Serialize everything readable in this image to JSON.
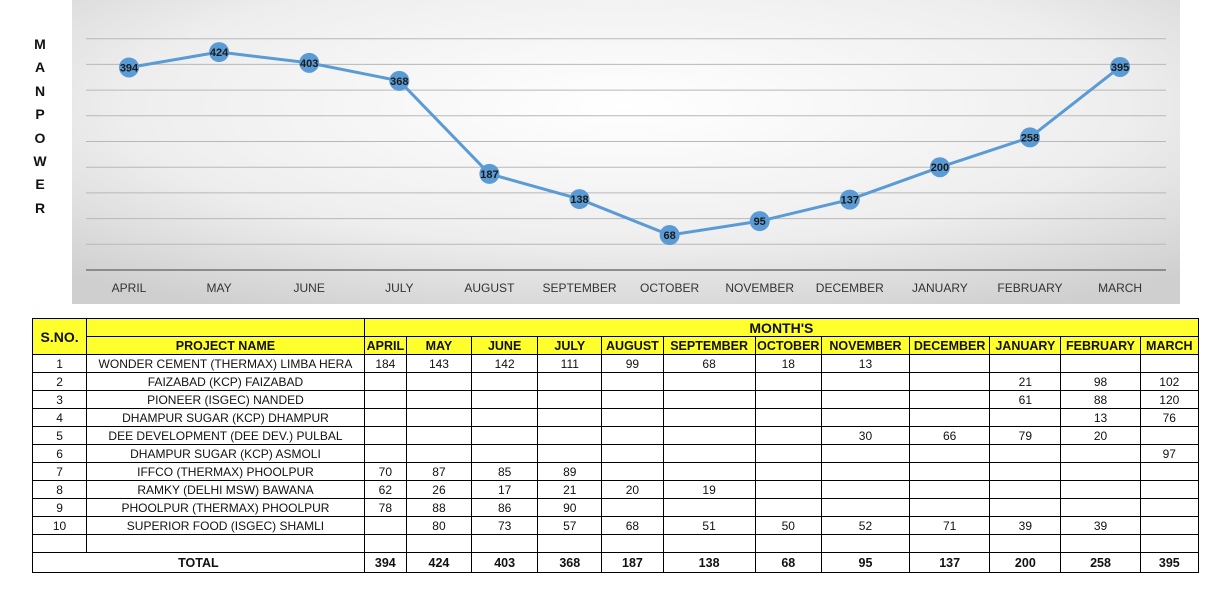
{
  "chart_data": {
    "type": "line",
    "title": "",
    "xlabel": "",
    "ylabel": "MANPOWER",
    "ylim": [
      0,
      500
    ],
    "grid": true,
    "line_color": "#5b9bd5",
    "categories": [
      "APRIL",
      "MAY",
      "JUNE",
      "JULY",
      "AUGUST",
      "SEPTEMBER",
      "OCTOBER",
      "NOVEMBER",
      "DECEMBER",
      "JANUARY",
      "FEBRUARY",
      "MARCH"
    ],
    "values": [
      394,
      424,
      403,
      368,
      187,
      138,
      68,
      95,
      137,
      200,
      258,
      395
    ]
  },
  "table": {
    "sno_header": "S.NO.",
    "months_header": "MONTH'S",
    "project_header": "PROJECT NAME",
    "month_headers": [
      "APRIL",
      "MAY",
      "JUNE",
      "JULY",
      "AUGUST",
      "SEPTEMBER",
      "OCTOBER",
      "NOVEMBER",
      "DECEMBER",
      "JANUARY",
      "FEBRUARY",
      "MARCH"
    ],
    "rows": [
      {
        "sno": "1",
        "name": "WONDER CEMENT (THERMAX) LIMBA HERA",
        "values": [
          "184",
          "143",
          "142",
          "111",
          "99",
          "68",
          "18",
          "13",
          "",
          "",
          "",
          ""
        ]
      },
      {
        "sno": "2",
        "name": "FAIZABAD (KCP) FAIZABAD",
        "values": [
          "",
          "",
          "",
          "",
          "",
          "",
          "",
          "",
          "",
          "21",
          "98",
          "102"
        ]
      },
      {
        "sno": "3",
        "name": "PIONEER (ISGEC) NANDED",
        "values": [
          "",
          "",
          "",
          "",
          "",
          "",
          "",
          "",
          "",
          "61",
          "88",
          "120"
        ]
      },
      {
        "sno": "4",
        "name": "DHAMPUR SUGAR (KCP) DHAMPUR",
        "values": [
          "",
          "",
          "",
          "",
          "",
          "",
          "",
          "",
          "",
          "",
          "13",
          "76"
        ]
      },
      {
        "sno": "5",
        "name": "DEE DEVELOPMENT (DEE DEV.) PULBAL",
        "values": [
          "",
          "",
          "",
          "",
          "",
          "",
          "",
          "30",
          "66",
          "79",
          "20",
          ""
        ]
      },
      {
        "sno": "6",
        "name": "DHAMPUR SUGAR (KCP) ASMOLI",
        "values": [
          "",
          "",
          "",
          "",
          "",
          "",
          "",
          "",
          "",
          "",
          "",
          "97"
        ]
      },
      {
        "sno": "7",
        "name": "IFFCO (THERMAX) PHOOLPUR",
        "values": [
          "70",
          "87",
          "85",
          "89",
          "",
          "",
          "",
          "",
          "",
          "",
          "",
          ""
        ]
      },
      {
        "sno": "8",
        "name": "RAMKY (DELHI MSW) BAWANA",
        "values": [
          "62",
          "26",
          "17",
          "21",
          "20",
          "19",
          "",
          "",
          "",
          "",
          "",
          ""
        ]
      },
      {
        "sno": "9",
        "name": "PHOOLPUR (THERMAX) PHOOLPUR",
        "values": [
          "78",
          "88",
          "86",
          "90",
          "",
          "",
          "",
          "",
          "",
          "",
          "",
          ""
        ]
      },
      {
        "sno": "10",
        "name": "SUPERIOR FOOD (ISGEC) SHAMLI",
        "values": [
          "",
          "80",
          "73",
          "57",
          "68",
          "51",
          "50",
          "52",
          "71",
          "39",
          "39",
          ""
        ]
      },
      {
        "sno": "",
        "name": "",
        "values": [
          "",
          "",
          "",
          "",
          "",
          "",
          "",
          "",
          "",
          "",
          "",
          ""
        ]
      }
    ],
    "total_label": "TOTAL",
    "totals": [
      "394",
      "424",
      "403",
      "368",
      "187",
      "138",
      "68",
      "95",
      "137",
      "200",
      "258",
      "395"
    ]
  }
}
